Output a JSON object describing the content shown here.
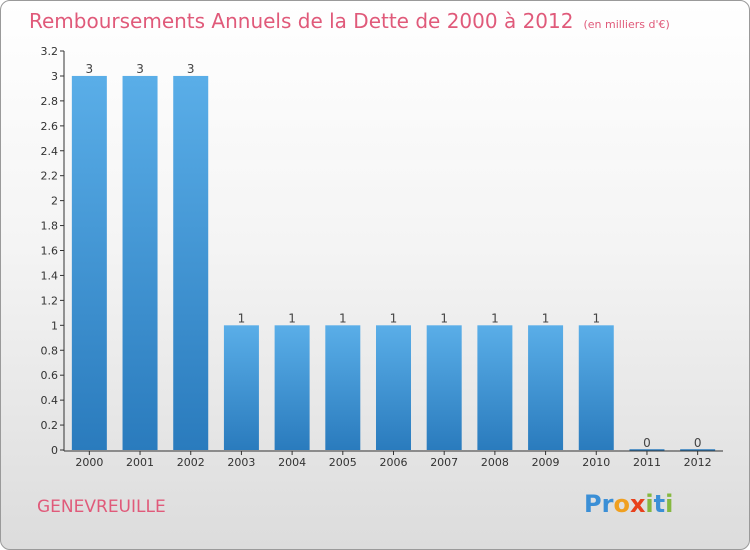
{
  "chart_data": {
    "type": "bar",
    "title": "Remboursements Annuels de la Dette de 2000 à 2012",
    "subtitle": "(en milliers d'€)",
    "categories": [
      "2000",
      "2001",
      "2002",
      "2003",
      "2004",
      "2005",
      "2006",
      "2007",
      "2008",
      "2009",
      "2010",
      "2011",
      "2012"
    ],
    "values": [
      3,
      3,
      3,
      1,
      1,
      1,
      1,
      1,
      1,
      1,
      1,
      0,
      0
    ],
    "data_labels": [
      "3",
      "3",
      "3",
      "1",
      "1",
      "1",
      "1",
      "1",
      "1",
      "1",
      "1",
      "0",
      "0"
    ],
    "ylim": [
      0,
      3.2
    ],
    "y_ticks": [
      {
        "value": 0,
        "label": "0"
      },
      {
        "value": 0.2,
        "label": "0.2"
      },
      {
        "value": 0.4,
        "label": "0.4"
      },
      {
        "value": 0.6,
        "label": "0.6"
      },
      {
        "value": 0.8,
        "label": "0.8"
      },
      {
        "value": 1,
        "label": "1"
      },
      {
        "value": 1.2,
        "label": "1.2"
      },
      {
        "value": 1.4,
        "label": "1.4"
      },
      {
        "value": 1.6,
        "label": "1.6"
      },
      {
        "value": 1.8,
        "label": "1.8"
      },
      {
        "value": 2,
        "label": "2"
      },
      {
        "value": 2.2,
        "label": "2.2"
      },
      {
        "value": 2.4,
        "label": "2.4"
      },
      {
        "value": 2.6,
        "label": "2.6"
      },
      {
        "value": 2.8,
        "label": "2.8"
      },
      {
        "value": 3,
        "label": "3"
      },
      {
        "value": 3.2,
        "label": "3.2"
      }
    ],
    "grid": false,
    "colors": {
      "bar_light": "#5aaee8",
      "bar_dark": "#2a7bbd",
      "title": "#e05a7a",
      "axis": "#333333"
    }
  },
  "location": "GENEVREUILLE",
  "brand": {
    "letters": [
      {
        "ch": "P",
        "color": "#3b8fd6"
      },
      {
        "ch": "r",
        "color": "#3b8fd6"
      },
      {
        "ch": "o",
        "color": "#f0a020"
      },
      {
        "ch": "x",
        "color": "#e8401c"
      },
      {
        "ch": "i",
        "color": "#86b840"
      },
      {
        "ch": "t",
        "color": "#3b8fd6"
      },
      {
        "ch": "i",
        "color": "#86b840"
      }
    ]
  }
}
